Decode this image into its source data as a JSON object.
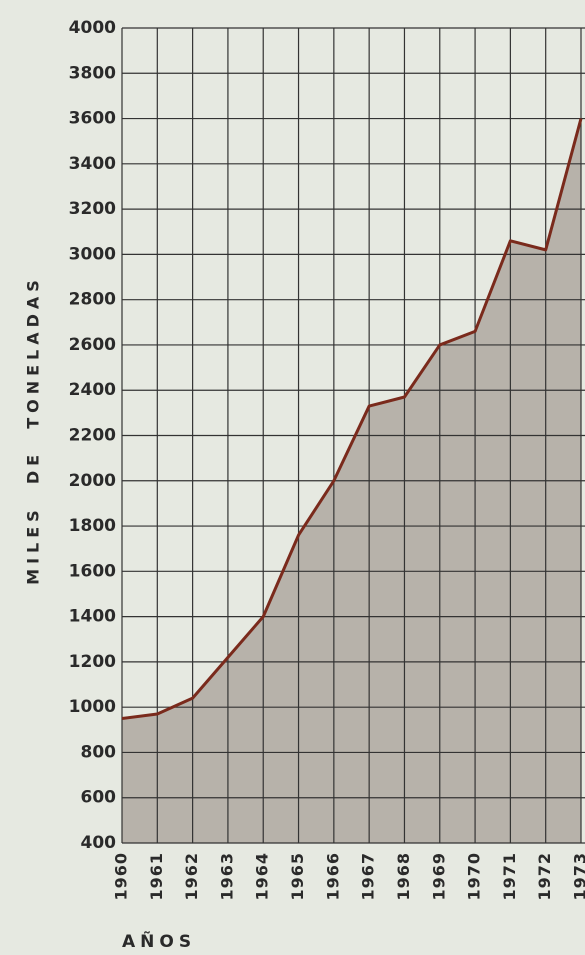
{
  "chart_data": {
    "type": "area",
    "y_label": "MILES  DE  TONELADAS",
    "x_label": "AÑOS",
    "categories": [
      "1960",
      "1961",
      "1962",
      "1963",
      "1964",
      "1965",
      "1966",
      "1967",
      "1968",
      "1969",
      "1970",
      "1971",
      "1972",
      "1973"
    ],
    "series": [
      {
        "name": "Toneladas",
        "color": "#7a2a1c",
        "values": [
          950,
          970,
          1040,
          1220,
          1400,
          1760,
          2000,
          2330,
          2370,
          2600,
          2660,
          3060,
          3020,
          3600
        ]
      }
    ],
    "fill": "#b7b2aa",
    "ylim": [
      400,
      4000
    ],
    "yticks": [
      400,
      600,
      800,
      1000,
      1200,
      1400,
      1600,
      1800,
      2000,
      2200,
      2400,
      2600,
      2800,
      3000,
      3200,
      3400,
      3600,
      3800,
      4000
    ],
    "grid": true
  }
}
